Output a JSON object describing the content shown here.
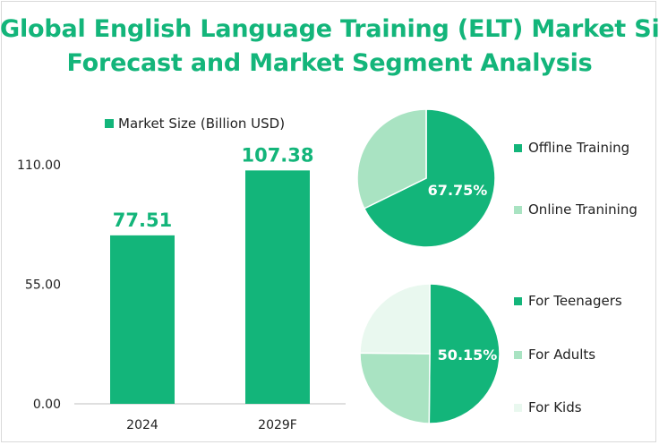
{
  "title": {
    "line1": "Global English Language Training (ELT) Market Size",
    "line2": "Forecast and Market Segment Analysis"
  },
  "colors": {
    "primary": "#13b57a",
    "light": "#a9e3c2",
    "pale": "#e9f8ef",
    "title": "#13b57a"
  },
  "chart_data": [
    {
      "type": "bar",
      "legend": "Market Size (Billion USD)",
      "categories": [
        "2024",
        "2029F"
      ],
      "series": [
        {
          "name": "Market Size (Billion USD)",
          "values": [
            77.51,
            107.38
          ]
        }
      ],
      "data_labels": [
        "77.51",
        "107.38"
      ],
      "ylim": [
        0,
        110
      ],
      "yticks": [
        0,
        55,
        110
      ],
      "ytick_labels": [
        "0.00",
        "55.00",
        "110.00"
      ],
      "grid": false
    },
    {
      "type": "pie",
      "slices": [
        {
          "label": "Offline Training",
          "value": 67.75,
          "color": "#13b57a"
        },
        {
          "label": "Online Tranining",
          "value": 32.25,
          "color": "#a9e3c2"
        }
      ],
      "data_label": "67.75%",
      "legend_position": "right"
    },
    {
      "type": "pie",
      "slices": [
        {
          "label": "For Teenagers",
          "value": 50.15,
          "color": "#13b57a"
        },
        {
          "label": "For Adults",
          "value": 25.0,
          "color": "#a9e3c2"
        },
        {
          "label": "For Kids",
          "value": 24.85,
          "color": "#e9f8ef"
        }
      ],
      "data_label": "50.15%",
      "legend_position": "right"
    }
  ]
}
